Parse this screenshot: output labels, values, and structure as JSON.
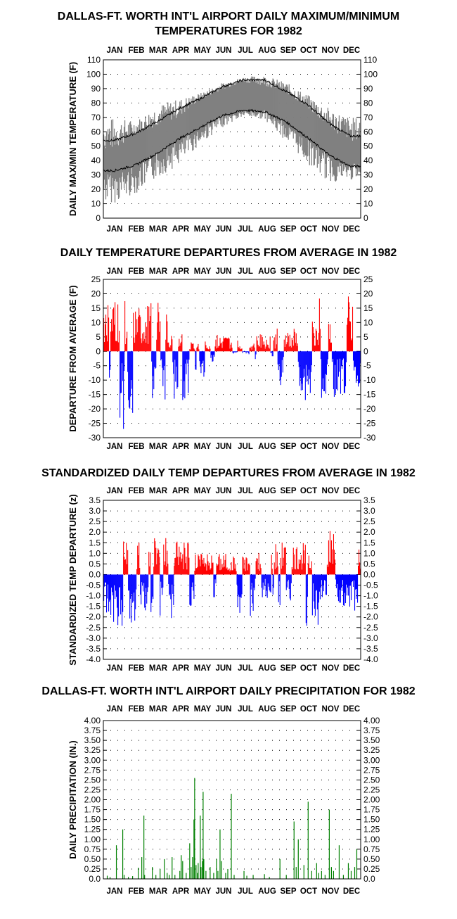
{
  "chart_data": [
    {
      "id": "c1",
      "type": "line",
      "title": "DALLAS-FT. WORTH INT'L AIRPORT DAILY MAXIMUM/MINIMUM TEMPERATURES FOR 1982",
      "title_lines": [
        "DALLAS-FT. WORTH INT'L AIRPORT DAILY MAXIMUM/MINIMUM",
        "TEMPERATURES FOR 1982"
      ],
      "ylabel": "DAILY MAX/MIN TEMPERATURE (F)",
      "ylim": [
        0,
        110
      ],
      "yticks": [
        0,
        10,
        20,
        30,
        40,
        50,
        60,
        70,
        80,
        90,
        100,
        110
      ],
      "ytick_labels": [
        "0",
        "10",
        "20",
        "30",
        "40",
        "50",
        "60",
        "70",
        "80",
        "90",
        "100",
        "110"
      ],
      "grid": true,
      "x_months": [
        "JAN",
        "FEB",
        "MAR",
        "APR",
        "MAY",
        "JUN",
        "JUL",
        "AUG",
        "SEP",
        "OCT",
        "NOV",
        "DEC"
      ],
      "series_color": "#808080",
      "normal_color": "#000000",
      "normal_max_monthly": [
        54,
        59,
        67,
        76,
        83,
        91,
        96,
        96,
        88,
        79,
        66,
        57
      ],
      "normal_min_monthly": [
        33,
        37,
        45,
        55,
        63,
        71,
        75,
        74,
        67,
        56,
        44,
        36
      ],
      "observed_max_monthly": [
        56,
        62,
        70,
        75,
        84,
        91,
        96,
        95,
        90,
        80,
        68,
        60
      ],
      "observed_min_monthly": [
        32,
        36,
        46,
        54,
        63,
        71,
        75,
        75,
        66,
        55,
        44,
        38
      ],
      "observed_max_spikes": [
        75,
        70,
        82,
        86,
        88,
        95,
        99,
        101,
        96,
        88,
        80,
        74
      ],
      "observed_min_spikes": [
        8,
        15,
        26,
        35,
        50,
        62,
        70,
        68,
        52,
        36,
        22,
        25
      ]
    },
    {
      "id": "c2",
      "type": "bar",
      "title": "DAILY TEMPERATURE DEPARTURES FROM AVERAGE IN 1982",
      "ylabel": "DEPARTURE FROM AVERAGE (F)",
      "ylim": [
        -30,
        25
      ],
      "yticks": [
        25,
        20,
        15,
        10,
        5,
        0,
        -5,
        -10,
        -15,
        -20,
        -25,
        -30
      ],
      "ytick_labels": [
        "25",
        "20",
        "15",
        "10",
        "5",
        "0",
        "-5",
        "-10",
        "-15",
        "-20",
        "-25",
        "-30"
      ],
      "grid": true,
      "x_months": [
        "JAN",
        "FEB",
        "MAR",
        "APR",
        "MAY",
        "JUN",
        "JUL",
        "AUG",
        "SEP",
        "OCT",
        "NOV",
        "DEC"
      ],
      "positive_color": "#ff0000",
      "negative_color": "#0000ff",
      "monthly_pos_max": [
        20,
        16,
        17,
        7,
        4,
        6,
        4,
        6,
        8,
        11,
        19,
        20
      ],
      "monthly_neg_min": [
        -27,
        -23,
        -18,
        -18,
        -11,
        -8,
        -1,
        -3,
        -13,
        -18,
        -17,
        -16
      ]
    },
    {
      "id": "c3",
      "type": "bar",
      "title": "STANDARDIZED DAILY TEMP DEPARTURES FROM AVERAGE IN 1982",
      "ylabel": "STANDARDIZED TEMP DEPARTURE (z)",
      "ylim": [
        -4.0,
        3.5
      ],
      "yticks": [
        3.5,
        3.0,
        2.5,
        2.0,
        1.5,
        1.0,
        0.5,
        0.0,
        -0.5,
        -1.0,
        -1.5,
        -2.0,
        -2.5,
        -3.0,
        -3.5,
        -4.0
      ],
      "ytick_labels": [
        "3.5",
        "3.0",
        "2.5",
        "2.0",
        "1.5",
        "1.0",
        "0.5",
        "0.0",
        "-0.5",
        "-1.0",
        "-1.5",
        "-2.0",
        "-2.5",
        "-3.0",
        "-3.5",
        "-4.0"
      ],
      "grid": true,
      "x_months": [
        "JAN",
        "FEB",
        "MAR",
        "APR",
        "MAY",
        "JUN",
        "JUL",
        "AUG",
        "SEP",
        "OCT",
        "NOV",
        "DEC"
      ],
      "positive_color": "#ff0000",
      "negative_color": "#0000ff",
      "monthly_pos_max": [
        1.8,
        1.5,
        1.9,
        1.6,
        1.0,
        1.0,
        0.9,
        1.2,
        1.6,
        1.5,
        2.2,
        1.7
      ],
      "monthly_neg_min": [
        -2.5,
        -2.3,
        -2.0,
        -2.1,
        -2.1,
        -1.4,
        -2.3,
        -1.2,
        -1.5,
        -2.5,
        -1.5,
        -1.7
      ]
    },
    {
      "id": "c4",
      "type": "bar",
      "title": "DALLAS-FT. WORTH INT'L AIRPORT DAILY PRECIPITATION FOR 1982",
      "ylabel": "DAILY PRECIPITATION (IN.)",
      "ylim": [
        0,
        4.0
      ],
      "yticks": [
        4.0,
        3.75,
        3.5,
        3.25,
        3.0,
        2.75,
        2.5,
        2.25,
        2.0,
        1.75,
        1.5,
        1.25,
        1.0,
        0.75,
        0.5,
        0.25,
        0.0
      ],
      "ytick_labels": [
        "4.00",
        "3.75",
        "3.50",
        "3.25",
        "3.00",
        "2.75",
        "2.50",
        "2.25",
        "2.00",
        "1.75",
        "1.50",
        "1.25",
        "1.00",
        "0.75",
        "0.50",
        "0.25",
        "0.0"
      ],
      "grid": true,
      "x_months": [
        "JAN",
        "FEB",
        "MAR",
        "APR",
        "MAY",
        "JUN",
        "JUL",
        "AUG",
        "SEP",
        "OCT",
        "NOV",
        "DEC"
      ],
      "bar_color": "#008000",
      "events": [
        {
          "day": 5,
          "value": 0.08
        },
        {
          "day": 9,
          "value": 0.05
        },
        {
          "day": 18,
          "value": 0.85
        },
        {
          "day": 27,
          "value": 1.25
        },
        {
          "day": 29,
          "value": 0.1
        },
        {
          "day": 35,
          "value": 0.05
        },
        {
          "day": 41,
          "value": 0.07
        },
        {
          "day": 49,
          "value": 0.28
        },
        {
          "day": 54,
          "value": 0.55
        },
        {
          "day": 57,
          "value": 1.6
        },
        {
          "day": 58,
          "value": 0.1
        },
        {
          "day": 69,
          "value": 0.3
        },
        {
          "day": 74,
          "value": 0.1
        },
        {
          "day": 80,
          "value": 0.25
        },
        {
          "day": 86,
          "value": 0.5
        },
        {
          "day": 90,
          "value": 0.15
        },
        {
          "day": 93,
          "value": 0.1
        },
        {
          "day": 97,
          "value": 0.55
        },
        {
          "day": 101,
          "value": 0.1
        },
        {
          "day": 108,
          "value": 0.2
        },
        {
          "day": 110,
          "value": 0.6
        },
        {
          "day": 112,
          "value": 0.45
        },
        {
          "day": 117,
          "value": 0.15
        },
        {
          "day": 122,
          "value": 0.9
        },
        {
          "day": 124,
          "value": 0.3
        },
        {
          "day": 126,
          "value": 0.55
        },
        {
          "day": 128,
          "value": 1.5
        },
        {
          "day": 129,
          "value": 2.55
        },
        {
          "day": 131,
          "value": 0.35
        },
        {
          "day": 133,
          "value": 0.15
        },
        {
          "day": 134,
          "value": 0.4
        },
        {
          "day": 137,
          "value": 1.6
        },
        {
          "day": 138,
          "value": 0.3
        },
        {
          "day": 140,
          "value": 0.45
        },
        {
          "day": 141,
          "value": 2.2
        },
        {
          "day": 142,
          "value": 0.5
        },
        {
          "day": 145,
          "value": 0.2
        },
        {
          "day": 151,
          "value": 0.3
        },
        {
          "day": 156,
          "value": 0.15
        },
        {
          "day": 160,
          "value": 0.5
        },
        {
          "day": 162,
          "value": 0.2
        },
        {
          "day": 165,
          "value": 1.25
        },
        {
          "day": 167,
          "value": 0.45
        },
        {
          "day": 173,
          "value": 0.15
        },
        {
          "day": 176,
          "value": 0.25
        },
        {
          "day": 181,
          "value": 2.15
        },
        {
          "day": 185,
          "value": 0.1
        },
        {
          "day": 199,
          "value": 0.2
        },
        {
          "day": 203,
          "value": 0.08
        },
        {
          "day": 212,
          "value": 0.1
        },
        {
          "day": 228,
          "value": 0.12
        },
        {
          "day": 235,
          "value": 0.05
        },
        {
          "day": 250,
          "value": 0.5
        },
        {
          "day": 259,
          "value": 0.1
        },
        {
          "day": 270,
          "value": 1.45
        },
        {
          "day": 273,
          "value": 0.3
        },
        {
          "day": 276,
          "value": 1.0
        },
        {
          "day": 284,
          "value": 0.35
        },
        {
          "day": 290,
          "value": 1.95
        },
        {
          "day": 295,
          "value": 0.2
        },
        {
          "day": 302,
          "value": 0.4
        },
        {
          "day": 305,
          "value": 0.15
        },
        {
          "day": 309,
          "value": 0.2
        },
        {
          "day": 314,
          "value": 0.1
        },
        {
          "day": 320,
          "value": 1.75
        },
        {
          "day": 323,
          "value": 0.3
        },
        {
          "day": 326,
          "value": 0.2
        },
        {
          "day": 334,
          "value": 0.85
        },
        {
          "day": 340,
          "value": 0.1
        },
        {
          "day": 347,
          "value": 0.4
        },
        {
          "day": 351,
          "value": 0.2
        },
        {
          "day": 356,
          "value": 0.3
        },
        {
          "day": 359,
          "value": 0.75
        }
      ]
    }
  ]
}
